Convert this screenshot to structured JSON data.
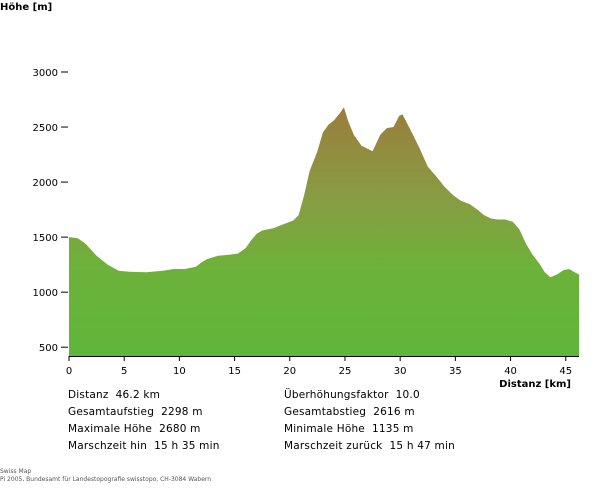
{
  "chart_data": {
    "type": "area",
    "ylabel": "Höhe [m]",
    "xlabel": "Distanz [km]",
    "xlim": [
      0,
      46.2
    ],
    "ylim": [
      420,
      3000
    ],
    "x_ticks": [
      0,
      5,
      10,
      15,
      20,
      25,
      30,
      35,
      40,
      45
    ],
    "y_ticks": [
      500,
      1000,
      1500,
      2000,
      2500,
      3000
    ],
    "grid": false,
    "fill_gradient": [
      "#9a7d3c",
      "#8a9b42",
      "#6db23a",
      "#5fb63a"
    ],
    "series": [
      {
        "x": [
          0,
          0.8,
          1.5,
          2.5,
          3.5,
          4.5,
          5.5,
          7,
          8.5,
          9.5,
          10.5,
          11.5,
          12,
          12.5,
          13.5,
          14.5,
          15.3,
          16,
          16.5,
          17,
          17.5,
          18.5,
          19.5,
          20.3,
          20.8,
          21.3,
          21.8,
          22.5,
          23,
          23.5,
          24,
          24.5,
          24.9,
          25.3,
          25.8,
          26.5,
          27.5,
          28.2,
          28.8,
          29.4,
          29.9,
          30.2,
          30.6,
          31.2,
          31.8,
          32.5,
          33.2,
          34,
          34.8,
          35.5,
          36.3,
          37,
          37.6,
          38.2,
          38.8,
          39.5,
          40.2,
          40.8,
          41.4,
          42,
          42.6,
          43.1,
          43.6,
          44.2,
          44.8,
          45.3,
          45.8,
          46.2
        ],
        "y": [
          1500,
          1490,
          1440,
          1330,
          1250,
          1195,
          1185,
          1180,
          1195,
          1210,
          1210,
          1230,
          1270,
          1300,
          1330,
          1340,
          1350,
          1400,
          1470,
          1530,
          1560,
          1580,
          1620,
          1650,
          1700,
          1880,
          2100,
          2280,
          2450,
          2520,
          2560,
          2620,
          2680,
          2550,
          2430,
          2330,
          2280,
          2430,
          2490,
          2500,
          2600,
          2616,
          2540,
          2420,
          2300,
          2140,
          2060,
          1960,
          1880,
          1830,
          1800,
          1750,
          1700,
          1670,
          1660,
          1660,
          1640,
          1570,
          1440,
          1340,
          1260,
          1180,
          1135,
          1160,
          1200,
          1210,
          1180,
          1160
        ]
      }
    ]
  },
  "stats": {
    "left": [
      {
        "label": "Distanz",
        "value": "46.2 km"
      },
      {
        "label": "Gesamtaufstieg",
        "value": "2298 m"
      },
      {
        "label": "Maximale Höhe",
        "value": "2680 m"
      },
      {
        "label": "Marschzeit hin",
        "value": "15 h 35 min"
      }
    ],
    "right": [
      {
        "label": "Überhöhungsfaktor",
        "value": "10.0"
      },
      {
        "label": "Gesamtabstieg",
        "value": "2616 m"
      },
      {
        "label": "Minimale Höhe",
        "value": "1135 m"
      },
      {
        "label": "Marschzeit zurück",
        "value": "15 h 47 min"
      }
    ]
  },
  "footer": {
    "line1": "Swiss Map",
    "line2": "Pi 2005, Bundesamt für Landestopografie swisstopo, CH-3084 Wabern"
  }
}
